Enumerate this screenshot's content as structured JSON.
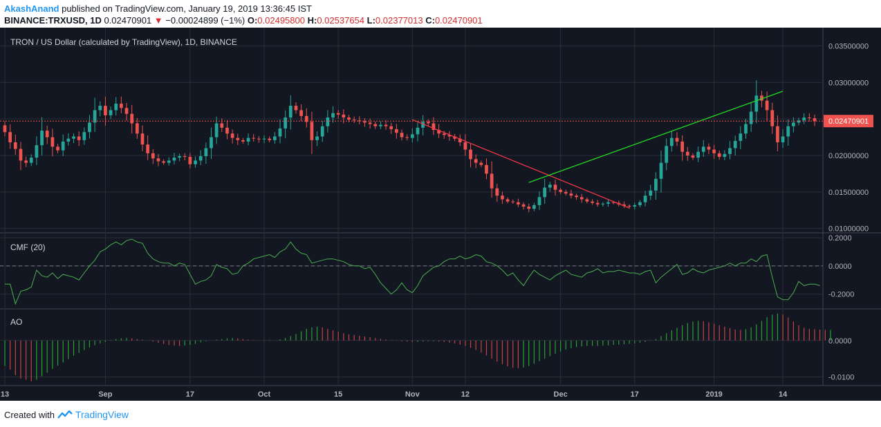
{
  "header": {
    "author": "AkashAnand",
    "published": "published on TradingView.com, January 19, 2019 13:36:45 IST",
    "symbol": "BINANCE:TRXUSD, 1D",
    "last": "0.02470901",
    "change": "−0.00024899 (−1%)",
    "o_label": "O:",
    "o": "0.02495800",
    "h_label": "H:",
    "h": "0.02537654",
    "l_label": "L:",
    "l": "0.02377013",
    "c_label": "C:",
    "c": "0.02470901"
  },
  "footer": {
    "created": "Created with",
    "brand": "TradingView"
  },
  "colors": {
    "up": "#26a69a",
    "down": "#ef5350",
    "cmf": "#4caf50",
    "bg": "#131722",
    "grid": "#2a2e39",
    "trend_down": "#f23645",
    "trend_up": "#22dd22"
  },
  "chart_data": {
    "type": "candlestick",
    "title": "TRON / US Dollar (calculated by TradingView), 1D, BINANCE",
    "x_ticks": [
      "13",
      "Sep",
      "17",
      "Oct",
      "15",
      "Nov",
      "12",
      "Dec",
      "17",
      "2019",
      "14"
    ],
    "x_tick_days": [
      0,
      19,
      35,
      49,
      63,
      77,
      87,
      105,
      119,
      134,
      147
    ],
    "price_axis": {
      "ticks": [
        "0.03500000",
        "0.03000000",
        "0.02500000",
        "0.02000000",
        "0.01500000",
        "0.01000000"
      ],
      "tick_values": [
        0.035,
        0.03,
        0.025,
        0.02,
        0.015,
        0.01
      ],
      "ylim": [
        0.0095,
        0.0375
      ]
    },
    "last_price_label": "0.02470901",
    "last_price": 0.02470901,
    "closes": [
      0.0232,
      0.0218,
      0.0209,
      0.0193,
      0.019,
      0.0197,
      0.0214,
      0.0234,
      0.0225,
      0.0212,
      0.0207,
      0.0219,
      0.0223,
      0.0226,
      0.0221,
      0.0232,
      0.0245,
      0.0262,
      0.0268,
      0.0255,
      0.0262,
      0.0271,
      0.0265,
      0.0257,
      0.0244,
      0.023,
      0.0215,
      0.0203,
      0.0196,
      0.0192,
      0.019,
      0.0193,
      0.0197,
      0.0199,
      0.0198,
      0.0188,
      0.0193,
      0.0199,
      0.021,
      0.0225,
      0.0244,
      0.0238,
      0.023,
      0.0224,
      0.0221,
      0.0219,
      0.0224,
      0.0223,
      0.0222,
      0.0223,
      0.0221,
      0.0226,
      0.0237,
      0.0252,
      0.0268,
      0.0262,
      0.0254,
      0.0246,
      0.0221,
      0.0226,
      0.024,
      0.0252,
      0.0258,
      0.0256,
      0.0252,
      0.0249,
      0.0248,
      0.0247,
      0.0245,
      0.0243,
      0.024,
      0.0242,
      0.024,
      0.0236,
      0.0231,
      0.0225,
      0.0224,
      0.0229,
      0.0238,
      0.0246,
      0.0244,
      0.0235,
      0.023,
      0.0228,
      0.0226,
      0.0223,
      0.0218,
      0.0208,
      0.0195,
      0.019,
      0.0187,
      0.0175,
      0.0155,
      0.0145,
      0.014,
      0.0137,
      0.0136,
      0.0133,
      0.013,
      0.0127,
      0.0132,
      0.0143,
      0.0156,
      0.016,
      0.0153,
      0.015,
      0.0148,
      0.0145,
      0.0143,
      0.014,
      0.0137,
      0.0135,
      0.0133,
      0.0134,
      0.0136,
      0.0135,
      0.0133,
      0.0131,
      0.013,
      0.0132,
      0.0136,
      0.0145,
      0.0152,
      0.0168,
      0.019,
      0.0213,
      0.0224,
      0.0219,
      0.0205,
      0.02,
      0.0197,
      0.0205,
      0.0212,
      0.0208,
      0.0203,
      0.0198,
      0.0202,
      0.021,
      0.022,
      0.023,
      0.0243,
      0.026,
      0.0282,
      0.0275,
      0.0262,
      0.024,
      0.0218,
      0.0226,
      0.024,
      0.0245,
      0.0248,
      0.0252,
      0.0251,
      0.0247
    ],
    "cmf": {
      "label": "CMF (20)",
      "ticks": [
        "0.2000",
        "0.0000",
        "-0.2000"
      ],
      "tick_values": [
        0.2,
        0.0,
        -0.2
      ],
      "ylim": [
        -0.3,
        0.22
      ],
      "values": [
        -0.13,
        -0.13,
        -0.27,
        -0.18,
        -0.17,
        -0.15,
        -0.03,
        -0.07,
        -0.08,
        -0.05,
        -0.09,
        -0.06,
        -0.07,
        -0.08,
        -0.1,
        -0.05,
        0.0,
        0.04,
        0.1,
        0.12,
        0.15,
        0.17,
        0.15,
        0.18,
        0.19,
        0.17,
        0.16,
        0.09,
        0.05,
        0.03,
        0.02,
        0.02,
        0.0,
        0.02,
        0.01,
        -0.06,
        -0.13,
        -0.11,
        -0.1,
        -0.07,
        0.01,
        -0.01,
        -0.02,
        -0.06,
        -0.05,
        0.0,
        0.02,
        0.05,
        0.06,
        0.07,
        0.08,
        0.06,
        0.1,
        0.12,
        0.17,
        0.12,
        0.09,
        0.08,
        0.02,
        0.03,
        0.04,
        0.05,
        0.05,
        0.04,
        0.03,
        0.01,
        0.0,
        0.0,
        -0.02,
        -0.01,
        -0.06,
        -0.12,
        -0.16,
        -0.2,
        -0.17,
        -0.12,
        -0.17,
        -0.19,
        -0.14,
        -0.07,
        -0.04,
        -0.01,
        0.0,
        0.03,
        0.05,
        0.05,
        0.07,
        0.05,
        0.06,
        0.08,
        0.07,
        0.03,
        0.02,
        0.0,
        -0.03,
        -0.07,
        -0.05,
        -0.1,
        -0.14,
        -0.08,
        -0.03,
        -0.06,
        -0.08,
        -0.1,
        -0.07,
        -0.05,
        -0.03,
        -0.06,
        -0.07,
        -0.08,
        -0.05,
        -0.04,
        -0.02,
        -0.05,
        -0.04,
        -0.04,
        -0.03,
        -0.04,
        -0.05,
        -0.05,
        -0.06,
        -0.04,
        -0.03,
        -0.12,
        -0.08,
        -0.05,
        -0.02,
        0.01,
        -0.06,
        -0.05,
        -0.02,
        -0.04,
        -0.05,
        -0.03,
        -0.02,
        -0.01,
        0.0,
        0.02,
        0.0,
        0.02,
        0.02,
        0.05,
        0.03,
        0.07,
        0.08,
        -0.08,
        -0.22,
        -0.24,
        -0.24,
        -0.19,
        -0.11,
        -0.14,
        -0.13,
        -0.13,
        -0.14
      ],
      "zero_line": 0
    },
    "ao": {
      "label": "AO",
      "ticks": [
        "0.0000",
        "-0.0100"
      ],
      "tick_values": [
        0.0,
        -0.01
      ],
      "ylim": [
        -0.0118,
        0.0085
      ],
      "values": [
        -0.007,
        -0.008,
        -0.0095,
        -0.0105,
        -0.0108,
        -0.0112,
        -0.0108,
        -0.0098,
        -0.0088,
        -0.0078,
        -0.0069,
        -0.006,
        -0.0051,
        -0.0042,
        -0.0034,
        -0.0026,
        -0.0019,
        -0.0013,
        -0.0008,
        -0.0004,
        0.0001,
        0.0004,
        0.0006,
        0.0007,
        0.0006,
        0.0004,
        0.0002,
        0.0,
        -0.0003,
        -0.0006,
        -0.0009,
        -0.0012,
        -0.0014,
        -0.0015,
        -0.0014,
        -0.0012,
        -0.0009,
        -0.0005,
        -0.0002,
        0.0,
        0.0002,
        0.0004,
        0.0006,
        0.0007,
        0.0006,
        0.0004,
        0.0002,
        0.0001,
        0.0,
        -0.0001,
        -0.0001,
        0.0,
        0.0003,
        0.0007,
        0.0012,
        0.0018,
        0.0025,
        0.0032,
        0.0036,
        0.0038,
        0.0036,
        0.0032,
        0.0028,
        0.0024,
        0.002,
        0.0017,
        0.0015,
        0.0013,
        0.0011,
        0.0009,
        0.0007,
        0.0005,
        0.0003,
        0.0001,
        -0.0001,
        -0.0002,
        -0.0003,
        -0.0004,
        -0.0004,
        -0.0003,
        -0.0002,
        -0.0002,
        -0.0003,
        -0.0004,
        -0.0006,
        -0.0008,
        -0.0011,
        -0.0015,
        -0.002,
        -0.0026,
        -0.0033,
        -0.0041,
        -0.005,
        -0.0058,
        -0.0065,
        -0.0071,
        -0.0075,
        -0.0076,
        -0.0074,
        -0.007,
        -0.0064,
        -0.0057,
        -0.005,
        -0.0043,
        -0.0036,
        -0.003,
        -0.0025,
        -0.0021,
        -0.0018,
        -0.0016,
        -0.0015,
        -0.0015,
        -0.0015,
        -0.0014,
        -0.0013,
        -0.0012,
        -0.0011,
        -0.001,
        -0.0009,
        -0.0008,
        -0.0006,
        -0.0004,
        -0.0001,
        0.0004,
        0.0012,
        0.002,
        0.0028,
        0.0035,
        0.0042,
        0.0048,
        0.0052,
        0.0054,
        0.0053,
        0.005,
        0.0046,
        0.0042,
        0.0038,
        0.0034,
        0.003,
        0.0029,
        0.0031,
        0.0036,
        0.0044,
        0.0054,
        0.0064,
        0.0071,
        0.0074,
        0.0071,
        0.0063,
        0.0052,
        0.0042,
        0.0035,
        0.0032,
        0.0031,
        0.003,
        0.0029,
        0.0029
      ],
      "zero_line": 0
    },
    "trendlines": [
      {
        "color": "red",
        "from": [
          77,
          0.0249
        ],
        "to": [
          118,
          0.0128
        ]
      },
      {
        "color": "green",
        "from": [
          99,
          0.0163
        ],
        "to": [
          147,
          0.0288
        ]
      }
    ]
  }
}
